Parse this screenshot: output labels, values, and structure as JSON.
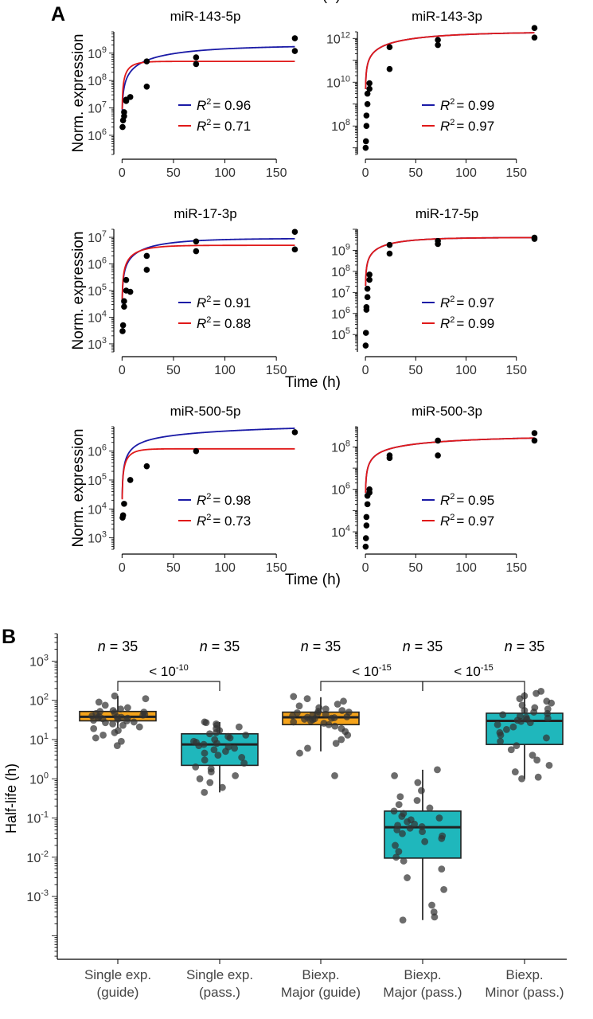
{
  "figure": {
    "panel_a_label": "A",
    "panel_b_label": "B"
  },
  "colors": {
    "single_exp_fit": "#1a1aa6",
    "biexp_fit": "#e01919",
    "points": "#000000",
    "box_guide": "#f5a31a",
    "box_passenger": "#1fb7bc",
    "jitter": "#333333"
  },
  "chart_data": [
    {
      "type": "scatter",
      "title": "miR-143-5p",
      "xlabel": "",
      "ylabel": "Norm. expression",
      "log_y": true,
      "xlim": [
        -8,
        170
      ],
      "ylim": [
        200000,
        6000000000
      ],
      "xticks": [
        0,
        50,
        100,
        150
      ],
      "yticks": [
        {
          "exp": 6,
          "label": "10"
        },
        {
          "exp": 7,
          "label": "10"
        },
        {
          "exp": 8,
          "label": "10"
        },
        {
          "exp": 9,
          "label": "10"
        }
      ],
      "points": [
        [
          0.5,
          2000000
        ],
        [
          1,
          3500000
        ],
        [
          2,
          5000000
        ],
        [
          2,
          7000000
        ],
        [
          4,
          18000000
        ],
        [
          4,
          20000000
        ],
        [
          8,
          25000000
        ],
        [
          24,
          60000000
        ],
        [
          24,
          500000000
        ],
        [
          72,
          400000000
        ],
        [
          72,
          700000000
        ],
        [
          168,
          1200000000
        ],
        [
          168,
          3500000000
        ]
      ],
      "fits": [
        {
          "name": "blue",
          "model": "biexp",
          "A": 1900000000,
          "k1": 0.014,
          "B": 2500000,
          "k2": 20
        },
        {
          "name": "red",
          "model": "mono",
          "A": 500000000,
          "k1": 0.12,
          "B": 200000,
          "k2": 0
        }
      ],
      "legend": [
        {
          "R": "R",
          "sup": "2",
          "value": "= 0.96"
        },
        {
          "R": "R",
          "sup": "2",
          "value": "= 0.71"
        }
      ]
    },
    {
      "type": "scatter",
      "title": "miR-143-3p",
      "xlabel": "Time (h)",
      "ylabel": "",
      "log_y": true,
      "xlim": [
        -8,
        170
      ],
      "ylim": [
        5000000,
        2000000000000
      ],
      "xticks": [
        0,
        50,
        100,
        150
      ],
      "yticks": [
        {
          "exp": 8,
          "label": "10"
        },
        {
          "exp": 10,
          "label": "10"
        },
        {
          "exp": 12,
          "label": "10"
        }
      ],
      "points": [
        [
          0.2,
          10000000
        ],
        [
          0.5,
          20000000
        ],
        [
          1,
          100000000
        ],
        [
          1,
          300000000
        ],
        [
          2,
          1000000000
        ],
        [
          2,
          3000000000
        ],
        [
          4,
          5000000000
        ],
        [
          4,
          9000000000
        ],
        [
          24,
          40000000000
        ],
        [
          24,
          400000000000
        ],
        [
          72,
          500000000000
        ],
        [
          72,
          850000000000
        ],
        [
          168,
          1100000000000
        ],
        [
          168,
          3000000000000
        ]
      ],
      "fits": [
        {
          "name": "blue",
          "model": "biexp",
          "A": 2000000000000,
          "k1": 0.014,
          "B": 10000000000,
          "k2": 0.45
        },
        {
          "name": "red",
          "model": "biexp",
          "A": 2000000000000,
          "k1": 0.014,
          "B": 10000000000,
          "k2": 0.45
        }
      ],
      "legend": [
        {
          "R": "R",
          "sup": "2",
          "value": "= 0.99"
        },
        {
          "R": "R",
          "sup": "2",
          "value": "= 0.97"
        }
      ]
    },
    {
      "type": "scatter",
      "title": "miR-17-3p",
      "xlabel": "",
      "ylabel": "Norm. expression",
      "log_y": true,
      "xlim": [
        -8,
        170
      ],
      "ylim": [
        500,
        20000000
      ],
      "xticks": [
        0,
        50,
        100,
        150
      ],
      "yticks": [
        {
          "exp": 3,
          "label": "10"
        },
        {
          "exp": 4,
          "label": "10"
        },
        {
          "exp": 5,
          "label": "10"
        },
        {
          "exp": 6,
          "label": "10"
        },
        {
          "exp": 7,
          "label": "10"
        }
      ],
      "points": [
        [
          0.5,
          3000
        ],
        [
          1,
          5000
        ],
        [
          2,
          25000
        ],
        [
          2,
          40000
        ],
        [
          4,
          100000
        ],
        [
          4,
          250000
        ],
        [
          8,
          90000
        ],
        [
          24,
          600000
        ],
        [
          24,
          2000000
        ],
        [
          72,
          3000000
        ],
        [
          72,
          7000000
        ],
        [
          168,
          3500000
        ],
        [
          168,
          16000000
        ]
      ],
      "fits": [
        {
          "name": "blue",
          "model": "biexp",
          "A": 9000000,
          "k1": 0.024,
          "B": 0,
          "k2": 0
        },
        {
          "name": "red",
          "model": "mono",
          "A": 5000000,
          "k1": 0.055,
          "B": 0,
          "k2": 0
        }
      ],
      "legend": [
        {
          "R": "R",
          "sup": "2",
          "value": "= 0.91"
        },
        {
          "R": "R",
          "sup": "2",
          "value": "= 0.88"
        }
      ]
    },
    {
      "type": "scatter",
      "title": "miR-17-5p",
      "xlabel": "Time (h)",
      "ylabel": "",
      "log_y": true,
      "xlim": [
        -8,
        170
      ],
      "ylim": [
        15000,
        10000000000
      ],
      "xticks": [
        0,
        50,
        100,
        150
      ],
      "yticks": [
        {
          "exp": 5,
          "label": "10"
        },
        {
          "exp": 6,
          "label": "10"
        },
        {
          "exp": 7,
          "label": "10"
        },
        {
          "exp": 8,
          "label": "10"
        },
        {
          "exp": 9,
          "label": "10"
        }
      ],
      "points": [
        [
          0.2,
          30000
        ],
        [
          0.5,
          120000
        ],
        [
          1,
          1500000
        ],
        [
          1,
          2000000
        ],
        [
          2,
          6000000
        ],
        [
          2,
          15000000
        ],
        [
          4,
          40000000
        ],
        [
          4,
          70000000
        ],
        [
          24,
          700000000
        ],
        [
          24,
          1800000000
        ],
        [
          72,
          2000000000
        ],
        [
          72,
          2800000000
        ],
        [
          168,
          3500000000
        ],
        [
          168,
          4000000000
        ]
      ],
      "fits": [
        {
          "name": "blue",
          "model": "biexp",
          "A": 4000000000,
          "k1": 0.028,
          "B": 50000000,
          "k2": 0.5
        },
        {
          "name": "red",
          "model": "biexp",
          "A": 4000000000,
          "k1": 0.028,
          "B": 50000000,
          "k2": 0.5
        }
      ],
      "legend": [
        {
          "R": "R",
          "sup": "2",
          "value": "= 0.97"
        },
        {
          "R": "R",
          "sup": "2",
          "value": "= 0.99"
        }
      ]
    },
    {
      "type": "scatter",
      "title": "miR-500-5p",
      "xlabel": "Time (h)",
      "ylabel": "Norm. expression",
      "log_y": true,
      "xlim": [
        -8,
        170
      ],
      "ylim": [
        400,
        7000000
      ],
      "xticks": [
        0,
        50,
        100,
        150
      ],
      "yticks": [
        {
          "exp": 3,
          "label": "10"
        },
        {
          "exp": 4,
          "label": "10"
        },
        {
          "exp": 5,
          "label": "10"
        },
        {
          "exp": 6,
          "label": "10"
        }
      ],
      "points": [
        [
          0.5,
          5000
        ],
        [
          1,
          6000
        ],
        [
          2,
          15000
        ],
        [
          8,
          100000
        ],
        [
          24,
          300000
        ],
        [
          72,
          1000000
        ],
        [
          168,
          4500000
        ]
      ],
      "fits": [
        {
          "name": "blue",
          "model": "biexp",
          "A": 6500000,
          "k1": 0.0075,
          "B": 1500000,
          "k2": 0.07
        },
        {
          "name": "red",
          "model": "mono",
          "A": 1200000,
          "k1": 0.12,
          "B": 0,
          "k2": 0
        }
      ],
      "legend": [
        {
          "R": "R",
          "sup": "2",
          "value": "= 0.98"
        },
        {
          "R": "R",
          "sup": "2",
          "value": "= 0.73"
        }
      ]
    },
    {
      "type": "scatter",
      "title": "miR-500-3p",
      "xlabel": "",
      "ylabel": "",
      "log_y": true,
      "xlim": [
        -8,
        170
      ],
      "ylim": [
        1500,
        900000000
      ],
      "xticks": [
        0,
        50,
        100,
        150
      ],
      "yticks": [
        {
          "exp": 4,
          "label": "10"
        },
        {
          "exp": 6,
          "label": "10"
        },
        {
          "exp": 8,
          "label": "10"
        }
      ],
      "points": [
        [
          0.2,
          2000
        ],
        [
          0.5,
          5000
        ],
        [
          1,
          20000
        ],
        [
          1,
          50000
        ],
        [
          2,
          200000
        ],
        [
          2,
          500000
        ],
        [
          4,
          700000
        ],
        [
          4,
          1000000
        ],
        [
          24,
          30000000
        ],
        [
          24,
          40000000
        ],
        [
          72,
          40000000
        ],
        [
          72,
          200000000
        ],
        [
          168,
          200000000
        ],
        [
          168,
          450000000
        ]
      ],
      "fits": [
        {
          "name": "blue",
          "model": "biexp",
          "A": 300000000,
          "k1": 0.009,
          "B": 30000000,
          "k2": 0.06
        },
        {
          "name": "red",
          "model": "biexp",
          "A": 300000000,
          "k1": 0.009,
          "B": 30000000,
          "k2": 0.06
        }
      ],
      "legend": [
        {
          "R": "R",
          "sup": "2",
          "value": "= 0.95"
        },
        {
          "R": "R",
          "sup": "2",
          "value": "= 0.97"
        }
      ]
    },
    {
      "type": "box",
      "ylabel": "Half-life (h)",
      "log_y": true,
      "ylim": [
        2.5e-05,
        5000
      ],
      "yticks": [
        {
          "exp": -3,
          "label": "10"
        },
        {
          "exp": -2,
          "label": "10"
        },
        {
          "exp": -1,
          "label": "10"
        },
        {
          "exp": 0,
          "label": "10"
        },
        {
          "exp": 1,
          "label": "10"
        },
        {
          "exp": 2,
          "label": "10"
        },
        {
          "exp": 3,
          "label": "10"
        }
      ],
      "groups": [
        {
          "label_line1": "Single exp.",
          "label_line2": "(guide)",
          "kind": "guide",
          "n_label": "n",
          "n_value": "= 35",
          "whisker_low": 20,
          "q1": 30,
          "median": 38,
          "q3": 52,
          "whisker_high": 130,
          "points": [
            7,
            9,
            11,
            13,
            15,
            17,
            19,
            21,
            23,
            25,
            27,
            28,
            30,
            31,
            33,
            34,
            35,
            36,
            37,
            38,
            39,
            40,
            42,
            44,
            46,
            48,
            50,
            52,
            55,
            60,
            65,
            75,
            90,
            110,
            130
          ]
        },
        {
          "label_line1": "Single exp.",
          "label_line2": "(pass.)",
          "kind": "pass",
          "n_label": "n",
          "n_value": "= 35",
          "whisker_low": 0.45,
          "q1": 2.2,
          "median": 7.5,
          "q3": 14,
          "whisker_high": 28,
          "points": [
            0.45,
            0.6,
            0.8,
            1,
            1.2,
            1.5,
            1.8,
            2,
            2.5,
            3,
            3.5,
            4,
            4.5,
            5,
            5.5,
            6,
            6.5,
            7,
            7.5,
            8,
            8.5,
            9,
            10,
            11,
            12,
            13,
            14,
            15,
            17,
            19,
            21,
            23,
            25,
            27,
            28
          ]
        },
        {
          "label_line1": "Biexp.",
          "label_line2": "Major (guide)",
          "kind": "guide",
          "n_label": "n",
          "n_value": "= 35",
          "whisker_low": 5,
          "q1": 24,
          "median": 37,
          "q3": 50,
          "whisker_high": 120,
          "points": [
            1.2,
            4.5,
            6,
            8,
            10,
            13,
            16,
            19,
            22,
            24,
            26,
            28,
            30,
            32,
            33,
            34,
            35,
            36,
            37,
            38,
            40,
            42,
            44,
            46,
            48,
            50,
            52,
            55,
            60,
            65,
            72,
            80,
            95,
            110,
            125
          ]
        },
        {
          "label_line1": "Biexp.",
          "label_line2": "Major (pass.)",
          "kind": "pass",
          "n_label": "n",
          "n_value": "= 35",
          "whisker_low": 0.00025,
          "q1": 0.0095,
          "median": 0.058,
          "q3": 0.15,
          "whisker_high": 1.7,
          "points": [
            0.00025,
            0.0003,
            0.0004,
            0.0006,
            0.0015,
            0.003,
            0.005,
            0.008,
            0.01,
            0.014,
            0.02,
            0.025,
            0.03,
            0.035,
            0.04,
            0.045,
            0.05,
            0.055,
            0.06,
            0.065,
            0.07,
            0.08,
            0.09,
            0.1,
            0.11,
            0.13,
            0.15,
            0.18,
            0.22,
            0.28,
            0.35,
            0.5,
            0.8,
            1.2,
            1.7
          ]
        },
        {
          "label_line1": "Biexp.",
          "label_line2": "Minor (pass.)",
          "kind": "pass",
          "n_label": "n",
          "n_value": "= 35",
          "whisker_low": 1,
          "q1": 7.5,
          "median": 30,
          "q3": 47,
          "whisker_high": 170,
          "points": [
            1,
            1.1,
            1.5,
            2.2,
            3,
            4,
            5.5,
            7,
            9,
            11,
            13,
            15,
            18,
            21,
            24,
            27,
            29,
            31,
            33,
            35,
            37,
            40,
            43,
            46,
            50,
            55,
            60,
            65,
            75,
            85,
            95,
            110,
            130,
            150,
            170
          ]
        }
      ],
      "comparisons": [
        {
          "from": 0,
          "to": 1,
          "label": "< 10",
          "exponent": "-10"
        },
        {
          "from": 2,
          "to": 3,
          "label": "< 10",
          "exponent": "-15"
        },
        {
          "from": 3,
          "to": 4,
          "label": "< 10",
          "exponent": "-15"
        }
      ]
    }
  ]
}
